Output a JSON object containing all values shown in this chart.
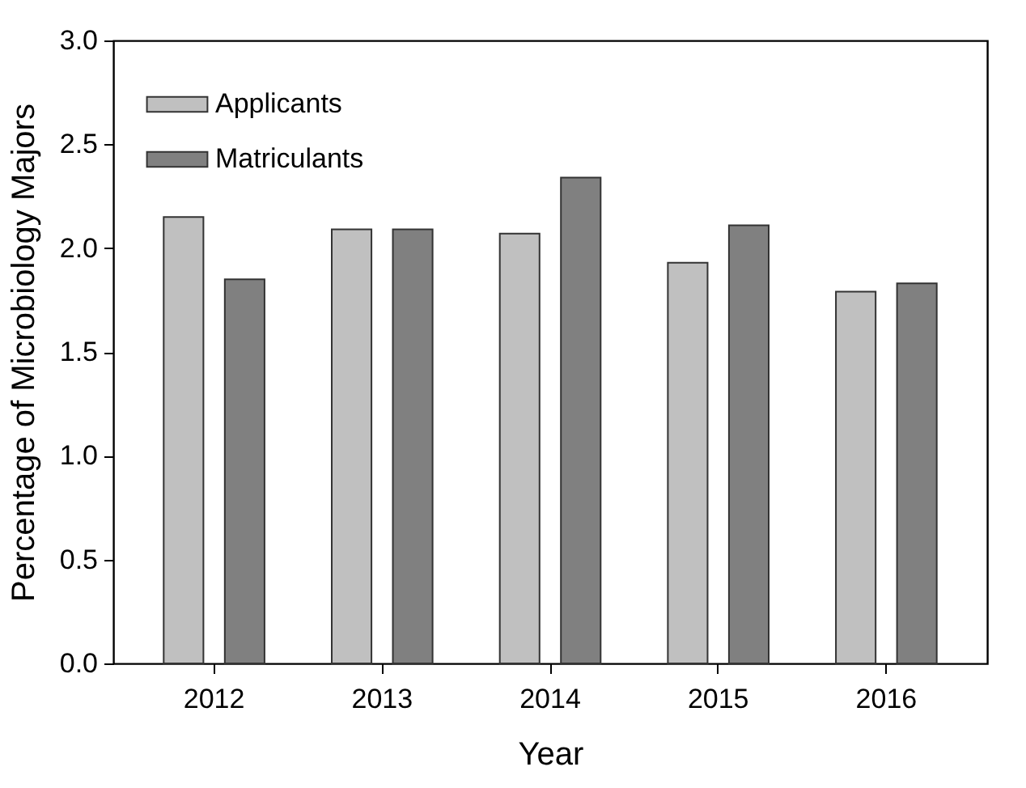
{
  "chart_data": {
    "type": "bar",
    "xlabel": "Year",
    "ylabel": "Percentage of Microbiology Majors",
    "categories": [
      "2012",
      "2013",
      "2014",
      "2015",
      "2016"
    ],
    "series": [
      {
        "name": "Applicants",
        "color": "#c0c0c0",
        "values": [
          2.15,
          2.09,
          2.07,
          1.93,
          1.79
        ]
      },
      {
        "name": "Matriculants",
        "color": "#808080",
        "values": [
          1.85,
          2.09,
          2.34,
          2.11,
          1.83
        ]
      }
    ],
    "ylim": [
      0,
      3.0
    ],
    "yticks": [
      {
        "value": 0,
        "label": "0.0"
      },
      {
        "value": 0.5,
        "label": "0.5"
      },
      {
        "value": 1,
        "label": "1.0"
      },
      {
        "value": 1.5,
        "label": "1.5"
      },
      {
        "value": 2,
        "label": "2.0"
      },
      {
        "value": 2.5,
        "label": "2.5"
      },
      {
        "value": 3,
        "label": "3.0"
      }
    ],
    "grid": false,
    "legend": "top left"
  }
}
